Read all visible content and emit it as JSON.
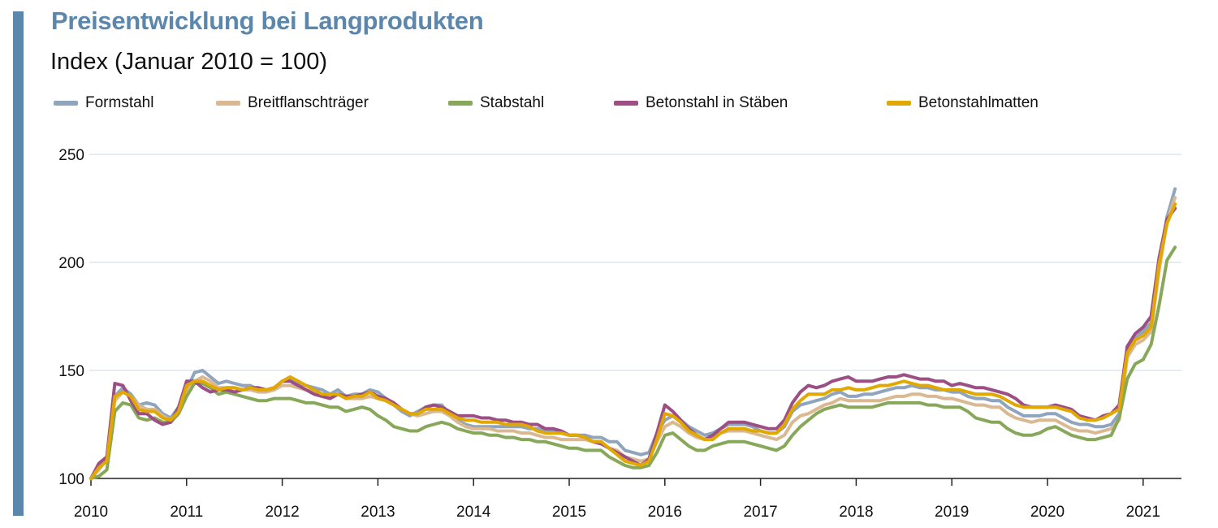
{
  "header": {
    "title": "Preisentwicklung bei Langprodukten",
    "subtitle": "Index (Januar 2010 = 100)"
  },
  "colors": {
    "accent": "#5b87ad",
    "grid": "#cfd9e4",
    "axis": "#222222"
  },
  "chart_data": {
    "type": "line",
    "title": "Preisentwicklung bei Langprodukten",
    "subtitle": "Index (Januar 2010 = 100)",
    "xlabel": "",
    "ylabel": "",
    "ylim": [
      100,
      250
    ],
    "y_ticks": [
      100,
      150,
      200,
      250
    ],
    "grid": true,
    "legend_position": "top",
    "x_start": 2010.0,
    "x_step": 0.0833333,
    "x_ticks": [
      "2010",
      "2011",
      "2012",
      "2013",
      "2014",
      "2015",
      "2016",
      "2017",
      "2018",
      "2019",
      "2020",
      "2021"
    ],
    "series": [
      {
        "name": "Formstahl",
        "color": "#8fa4bd",
        "values": [
          100,
          106,
          110,
          138,
          142,
          139,
          134,
          135,
          134,
          130,
          128,
          133,
          141,
          149,
          150,
          147,
          144,
          145,
          144,
          143,
          143,
          141,
          141,
          142,
          145,
          146,
          144,
          143,
          142,
          141,
          139,
          141,
          138,
          139,
          139,
          141,
          140,
          137,
          134,
          131,
          129,
          131,
          133,
          134,
          134,
          130,
          127,
          125,
          124,
          124,
          124,
          124,
          124,
          124,
          124,
          123,
          123,
          122,
          122,
          121,
          120,
          120,
          120,
          119,
          119,
          117,
          117,
          113,
          112,
          111,
          112,
          121,
          127,
          129,
          127,
          124,
          122,
          120,
          121,
          123,
          125,
          125,
          125,
          124,
          122,
          121,
          121,
          124,
          131,
          134,
          135,
          136,
          137,
          139,
          140,
          138,
          138,
          139,
          139,
          140,
          141,
          142,
          142,
          143,
          142,
          142,
          141,
          141,
          140,
          140,
          138,
          137,
          137,
          136,
          136,
          133,
          131,
          129,
          129,
          129,
          130,
          130,
          128,
          126,
          125,
          125,
          124,
          124,
          125,
          130,
          160,
          165,
          168,
          172,
          200,
          221,
          234
        ]
      },
      {
        "name": "Breitflanschträger",
        "color": "#d9b892",
        "values": [
          100,
          104,
          109,
          136,
          140,
          138,
          134,
          132,
          132,
          129,
          127,
          131,
          140,
          145,
          147,
          145,
          142,
          142,
          142,
          141,
          141,
          140,
          140,
          141,
          143,
          143,
          142,
          141,
          140,
          139,
          138,
          139,
          137,
          137,
          137,
          138,
          137,
          136,
          134,
          132,
          130,
          129,
          130,
          131,
          131,
          129,
          126,
          124,
          123,
          123,
          123,
          122,
          122,
          122,
          121,
          121,
          120,
          119,
          119,
          118,
          118,
          118,
          118,
          117,
          117,
          114,
          113,
          110,
          109,
          108,
          109,
          117,
          124,
          126,
          124,
          121,
          119,
          118,
          119,
          121,
          122,
          122,
          122,
          121,
          120,
          119,
          118,
          120,
          126,
          129,
          130,
          132,
          134,
          135,
          137,
          136,
          136,
          136,
          136,
          136,
          137,
          138,
          138,
          139,
          139,
          138,
          138,
          137,
          137,
          136,
          135,
          134,
          134,
          133,
          133,
          130,
          128,
          127,
          126,
          127,
          127,
          127,
          125,
          123,
          122,
          122,
          121,
          122,
          123,
          127,
          156,
          162,
          164,
          168,
          196,
          219,
          230
        ]
      },
      {
        "name": "Stabstahl",
        "color": "#87a85a",
        "values": [
          100,
          101,
          104,
          131,
          135,
          134,
          128,
          127,
          128,
          126,
          126,
          130,
          138,
          144,
          144,
          142,
          139,
          140,
          139,
          138,
          137,
          136,
          136,
          137,
          137,
          137,
          136,
          135,
          135,
          134,
          133,
          133,
          131,
          132,
          133,
          132,
          129,
          127,
          124,
          123,
          122,
          122,
          124,
          125,
          126,
          125,
          123,
          122,
          121,
          121,
          120,
          120,
          119,
          119,
          118,
          118,
          117,
          117,
          116,
          115,
          114,
          114,
          113,
          113,
          113,
          110,
          108,
          106,
          105,
          105,
          106,
          112,
          120,
          121,
          118,
          115,
          113,
          113,
          115,
          116,
          117,
          117,
          117,
          116,
          115,
          114,
          113,
          115,
          120,
          124,
          127,
          130,
          132,
          133,
          134,
          133,
          133,
          133,
          133,
          134,
          135,
          135,
          135,
          135,
          135,
          134,
          134,
          133,
          133,
          133,
          131,
          128,
          127,
          126,
          126,
          123,
          121,
          120,
          120,
          121,
          123,
          124,
          122,
          120,
          119,
          118,
          118,
          119,
          120,
          128,
          146,
          153,
          155,
          162,
          180,
          201,
          207
        ]
      },
      {
        "name": "Betonstahl in Stäben",
        "color": "#9c4f84",
        "values": [
          100,
          107,
          110,
          144,
          143,
          136,
          130,
          130,
          127,
          125,
          126,
          133,
          145,
          145,
          142,
          140,
          141,
          141,
          140,
          141,
          142,
          142,
          141,
          142,
          145,
          145,
          143,
          141,
          139,
          138,
          137,
          139,
          138,
          138,
          139,
          140,
          138,
          137,
          135,
          132,
          130,
          130,
          133,
          134,
          133,
          131,
          129,
          129,
          129,
          128,
          128,
          127,
          127,
          126,
          126,
          125,
          125,
          123,
          123,
          122,
          120,
          120,
          119,
          117,
          116,
          114,
          112,
          110,
          108,
          106,
          109,
          121,
          134,
          131,
          127,
          123,
          120,
          118,
          120,
          123,
          126,
          126,
          126,
          125,
          124,
          123,
          123,
          127,
          135,
          140,
          143,
          142,
          143,
          145,
          146,
          147,
          145,
          145,
          145,
          146,
          147,
          147,
          148,
          147,
          146,
          146,
          145,
          145,
          143,
          144,
          143,
          142,
          142,
          141,
          140,
          139,
          137,
          134,
          133,
          133,
          133,
          134,
          133,
          132,
          129,
          128,
          127,
          129,
          130,
          134,
          161,
          167,
          170,
          175,
          202,
          220,
          225
        ]
      },
      {
        "name": "Betonstahlmatten",
        "color": "#e0a800",
        "values": [
          100,
          105,
          108,
          138,
          140,
          138,
          132,
          131,
          131,
          128,
          127,
          131,
          143,
          145,
          145,
          143,
          141,
          142,
          142,
          141,
          142,
          141,
          141,
          142,
          145,
          147,
          145,
          143,
          141,
          139,
          139,
          139,
          137,
          138,
          138,
          140,
          137,
          136,
          134,
          132,
          130,
          130,
          132,
          132,
          132,
          130,
          128,
          127,
          127,
          126,
          126,
          126,
          125,
          125,
          125,
          124,
          122,
          121,
          121,
          121,
          120,
          120,
          119,
          117,
          117,
          114,
          111,
          108,
          107,
          106,
          108,
          118,
          130,
          129,
          126,
          122,
          120,
          118,
          118,
          121,
          123,
          123,
          123,
          122,
          122,
          121,
          121,
          125,
          132,
          136,
          139,
          139,
          139,
          141,
          141,
          142,
          141,
          141,
          142,
          143,
          143,
          144,
          145,
          144,
          143,
          143,
          142,
          141,
          141,
          141,
          140,
          139,
          139,
          139,
          138,
          136,
          134,
          133,
          133,
          133,
          133,
          133,
          132,
          131,
          128,
          127,
          127,
          128,
          130,
          132,
          158,
          164,
          166,
          170,
          199,
          218,
          227
        ]
      }
    ]
  }
}
